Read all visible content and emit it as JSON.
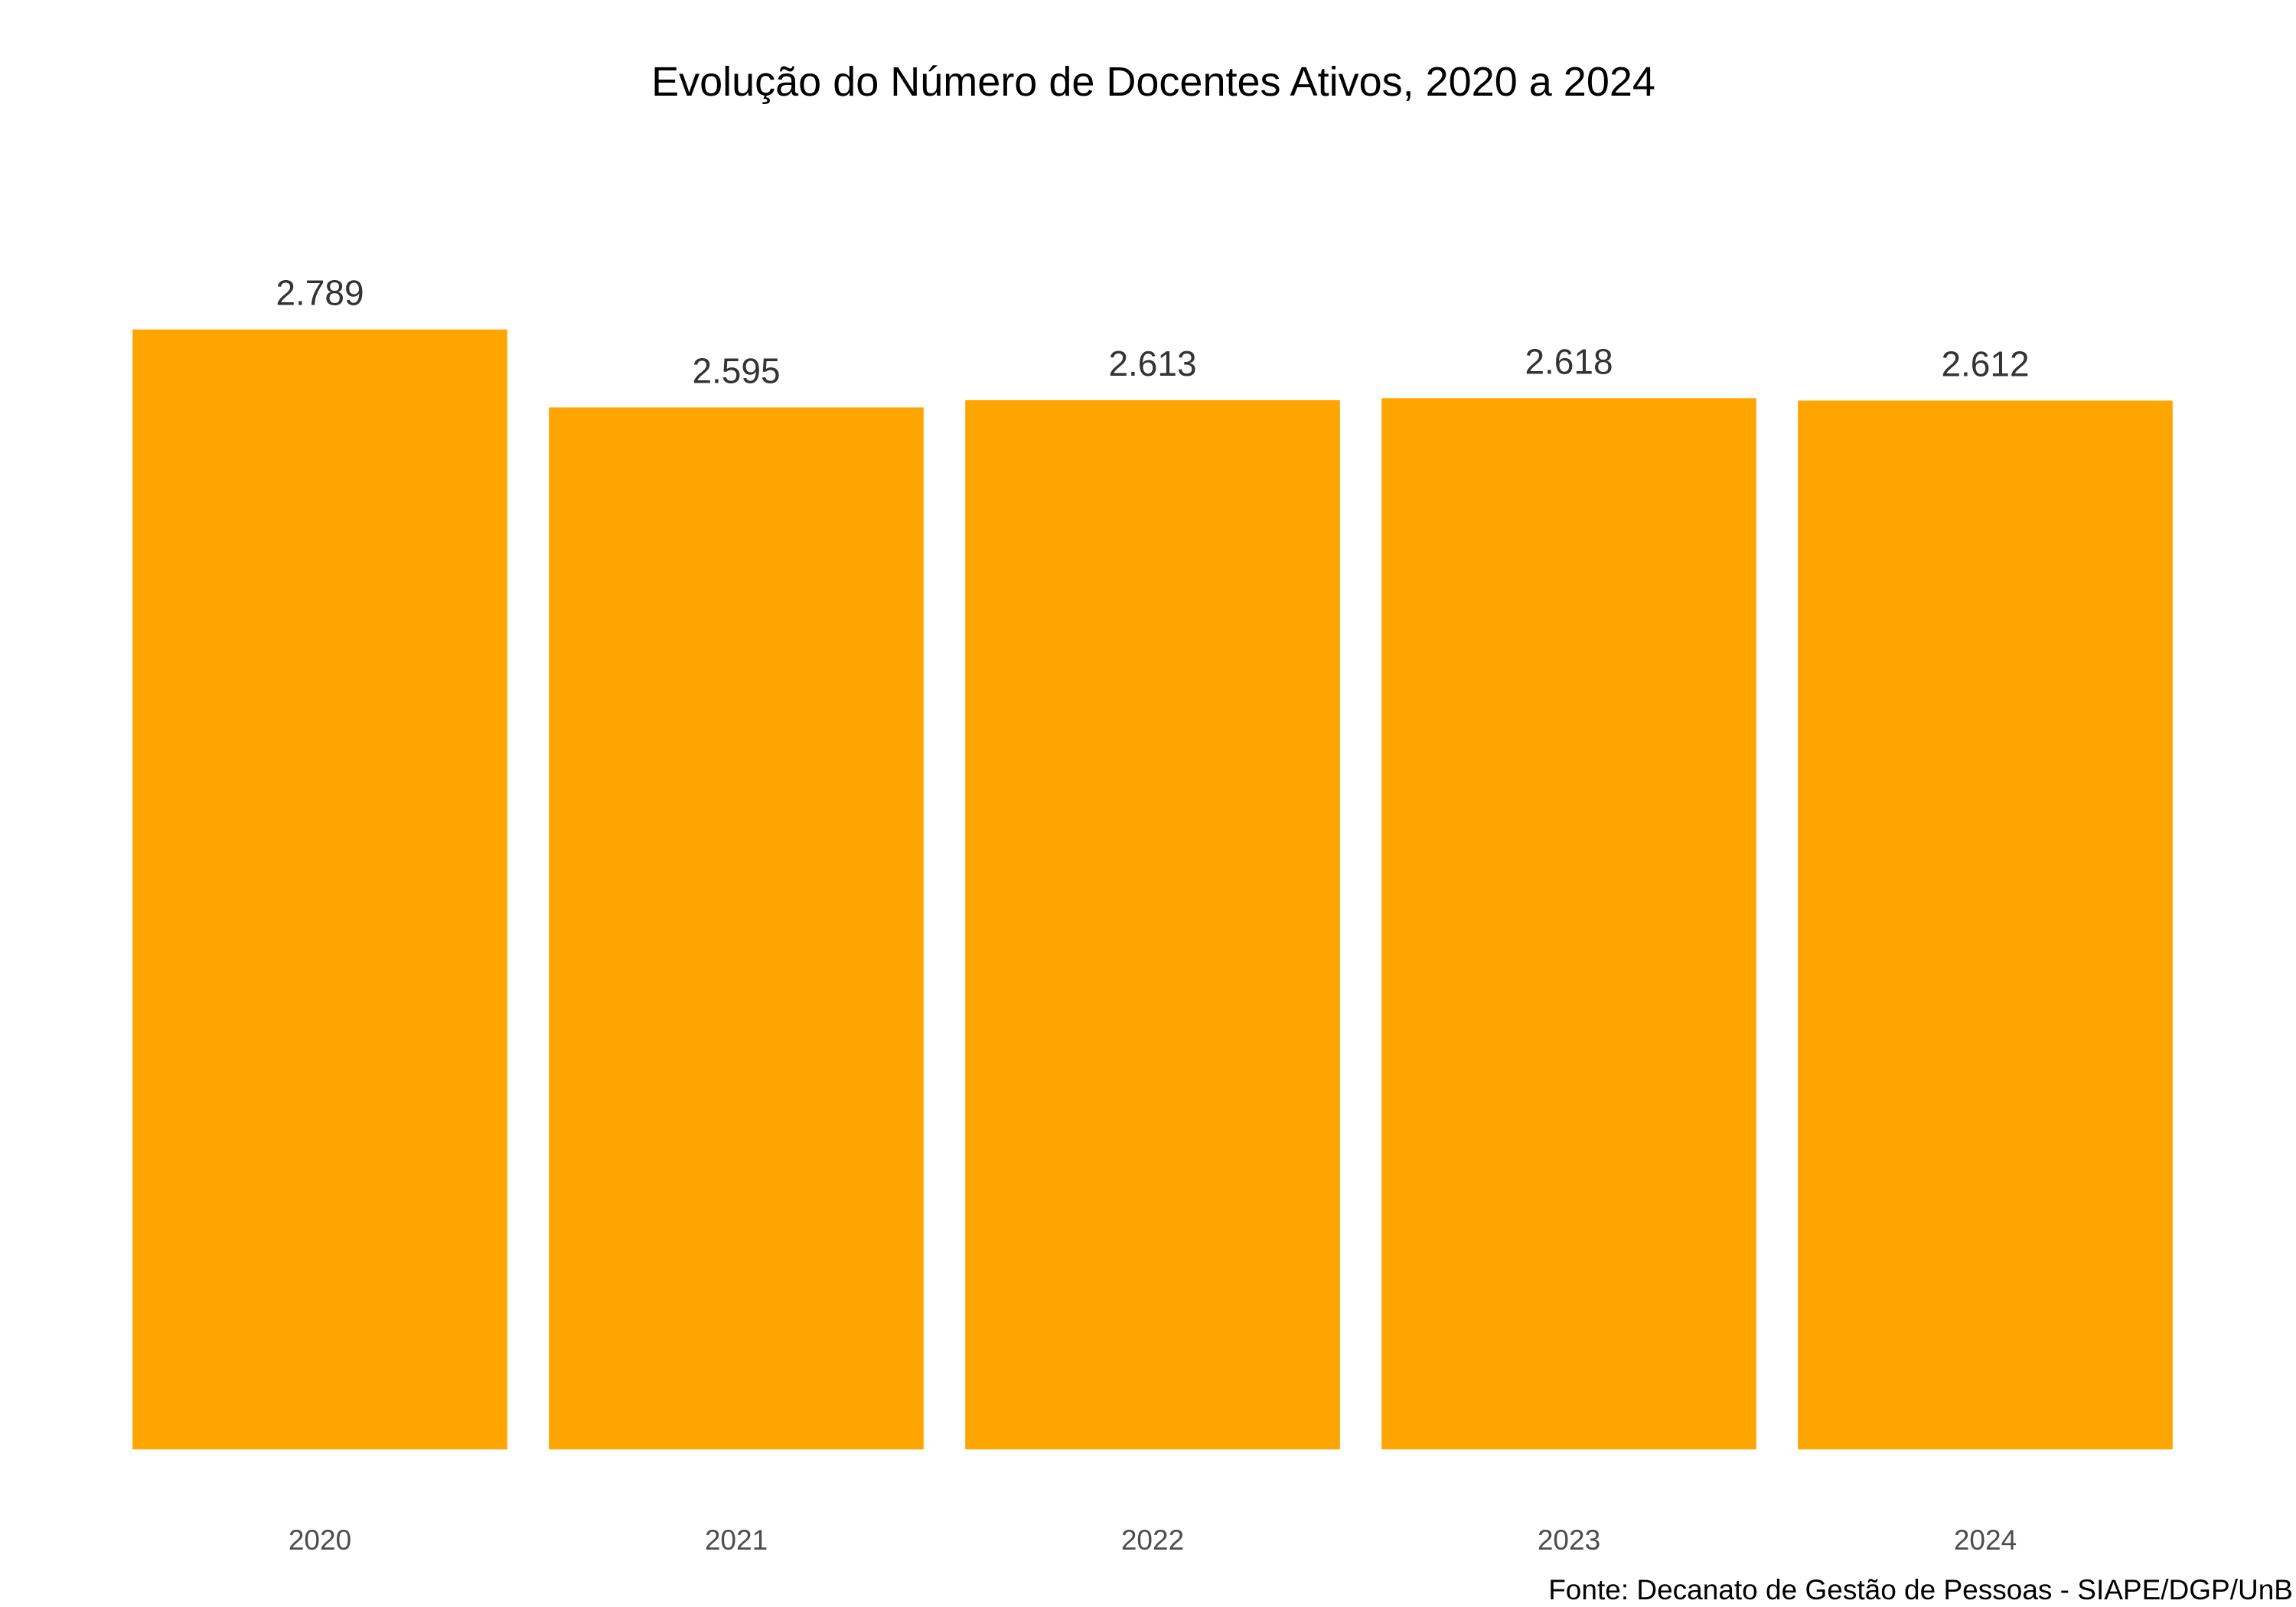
{
  "chart_data": {
    "type": "bar",
    "title": "Evolução do Número de Docentes Ativos, 2020 a 2024",
    "caption": "Fonte: Decanato de Gestão de Pessoas - SIAPE/DGP/UnB",
    "xlabel": "",
    "ylabel": "",
    "categories": [
      "2020",
      "2021",
      "2022",
      "2023",
      "2024"
    ],
    "values": [
      2789,
      2595,
      2613,
      2618,
      2612
    ],
    "value_labels": [
      "2.789",
      "2.595",
      "2.613",
      "2.618",
      "2.612"
    ],
    "ylim": [
      0,
      3000
    ],
    "grid": false,
    "legend": "none",
    "bar_color": "#FFA500"
  }
}
